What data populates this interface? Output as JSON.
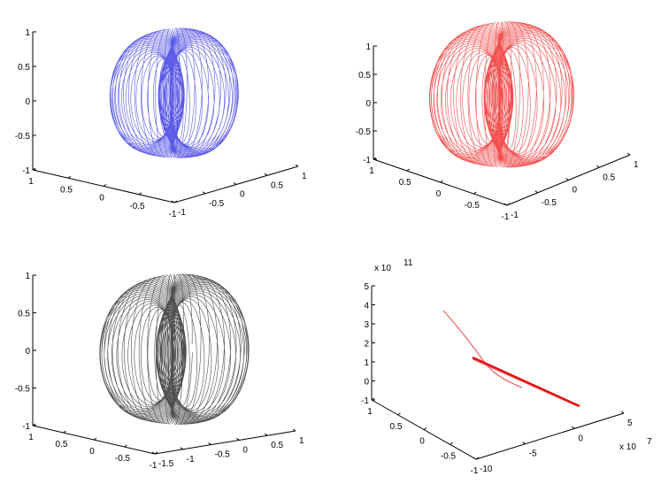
{
  "chart_data": [
    {
      "type": "line3d",
      "panel": "top-left",
      "color": "#2222dd",
      "description_shape": "torus-like spiral trajectory on sphere",
      "zlim": [
        -1,
        1
      ],
      "z_ticks": [
        "1",
        "0.5",
        "0",
        "-0.5",
        "-1"
      ],
      "x_ticks": [
        "1",
        "0.5",
        "0",
        "-0.5",
        "-1"
      ],
      "y_ticks": [
        "-1",
        "-0.5",
        "0",
        "0.5",
        "1"
      ],
      "hole_side": 0.3
    },
    {
      "type": "line3d",
      "panel": "top-right",
      "color": "#ee1111",
      "zlim": [
        -1,
        1
      ],
      "z_ticks": [
        "1",
        "0.5",
        "0",
        "-0.5",
        "-1"
      ],
      "x_ticks": [
        "1",
        "0.5",
        "0",
        "-0.5",
        "-1"
      ],
      "y_ticks": [
        "-1",
        "-0.5",
        "0",
        "0.5",
        "1"
      ],
      "hole_side": 0.35
    },
    {
      "type": "line3d",
      "panel": "bottom-left",
      "color": "#111111",
      "zlim": [
        -1,
        1
      ],
      "z_ticks": [
        "1",
        "0.5",
        "0",
        "-0.5",
        "-1"
      ],
      "x_ticks": [
        "1",
        "0.5",
        "0",
        "-0.5",
        "-1"
      ],
      "y_ticks": [
        "-1.5",
        "-1",
        "-0.5",
        "0",
        "0.5",
        "1"
      ],
      "hole_side": 0.0
    },
    {
      "type": "line3d",
      "panel": "bottom-right",
      "color": "#ee1111",
      "z_exponent": "x 10",
      "z_exponent_power": "11",
      "y_exponent": "x 10",
      "y_exponent_power": "7",
      "z_ticks": [
        "5",
        "4",
        "3",
        "2",
        "1",
        "0",
        "-1"
      ],
      "x_ticks": [
        "1",
        "0.5",
        "0",
        "-0.5",
        "-1"
      ],
      "y_ticks": [
        "-10",
        "-5",
        "0",
        "5"
      ]
    }
  ]
}
